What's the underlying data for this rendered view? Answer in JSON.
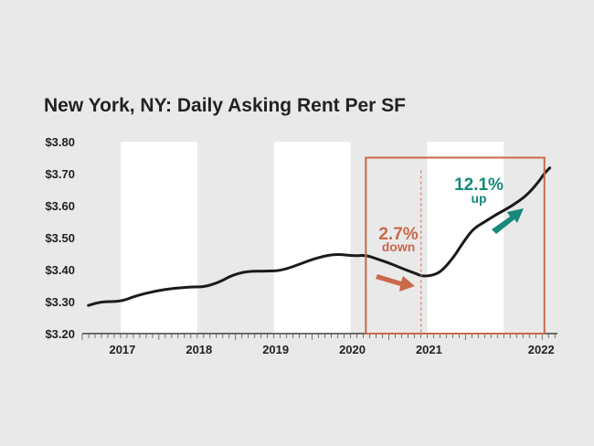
{
  "colors": {
    "background": "#e9e9e9",
    "band": "#ffffff",
    "line": "#1b1b1b",
    "axis": "#222222",
    "decline": "#c9694a",
    "increase": "#17897a"
  },
  "chart_data": {
    "type": "line",
    "title": "New York, NY: Daily Asking Rent Per SF",
    "xlabel": "",
    "ylabel": "",
    "x_unit": "year",
    "xlim": [
      2016.0,
      2022.2
    ],
    "ylim": [
      3.2,
      3.8
    ],
    "y_ticks": [
      3.2,
      3.3,
      3.4,
      3.5,
      3.6,
      3.7,
      3.8
    ],
    "y_tick_labels": [
      "$3.20",
      "$3.30",
      "$3.40",
      "$3.50",
      "$3.60",
      "$3.70",
      "$3.80"
    ],
    "x_ticks": [
      {
        "value": 2017,
        "label": "2017"
      },
      {
        "value": 2018,
        "label": "2018"
      },
      {
        "value": 2019,
        "label": "2019"
      },
      {
        "value": 2020,
        "label": "2020"
      },
      {
        "value": 2021,
        "label": "2021"
      },
      {
        "value": 2022,
        "label": "2022"
      }
    ],
    "grid": false,
    "legend": "none",
    "shaded_periods": [
      {
        "start": 2016.5,
        "end": 2017.5
      },
      {
        "start": 2018.5,
        "end": 2019.5
      },
      {
        "start": 2020.5,
        "end": 2021.5
      }
    ],
    "series": [
      {
        "x": [
          2016.08,
          2016.25,
          2016.5,
          2016.7,
          2016.95,
          2017.2,
          2017.45,
          2017.6,
          2017.8,
          2017.95,
          2018.15,
          2018.4,
          2018.6,
          2018.85,
          2019.0,
          2019.2,
          2019.35,
          2019.55,
          2019.7,
          2019.85,
          2020.0,
          2020.2,
          2020.35,
          2020.45,
          2020.6,
          2020.7,
          2020.85,
          2020.95,
          2021.1,
          2021.25,
          2021.4,
          2021.6,
          2021.8,
          2021.95,
          2022.03,
          2022.1
        ],
        "y": [
          3.288,
          3.3,
          3.3,
          3.318,
          3.333,
          3.342,
          3.346,
          3.346,
          3.362,
          3.382,
          3.395,
          3.395,
          3.397,
          3.418,
          3.432,
          3.445,
          3.448,
          3.443,
          3.445,
          3.433,
          3.421,
          3.401,
          3.388,
          3.378,
          3.384,
          3.398,
          3.44,
          3.478,
          3.528,
          3.549,
          3.572,
          3.598,
          3.632,
          3.673,
          3.701,
          3.718
        ]
      }
    ],
    "annotations": [
      {
        "label": "2.7%",
        "sublabel": "down",
        "direction": "down",
        "color": "decline"
      },
      {
        "label": "12.1%",
        "sublabel": "up",
        "direction": "up",
        "color": "increase"
      }
    ],
    "highlight_box": {
      "x_start": 2019.7,
      "x_end": 2022.03,
      "y_start": 3.2,
      "y_end": 3.75
    },
    "reference_line": {
      "x": 2020.42,
      "y_top": 3.71
    }
  }
}
